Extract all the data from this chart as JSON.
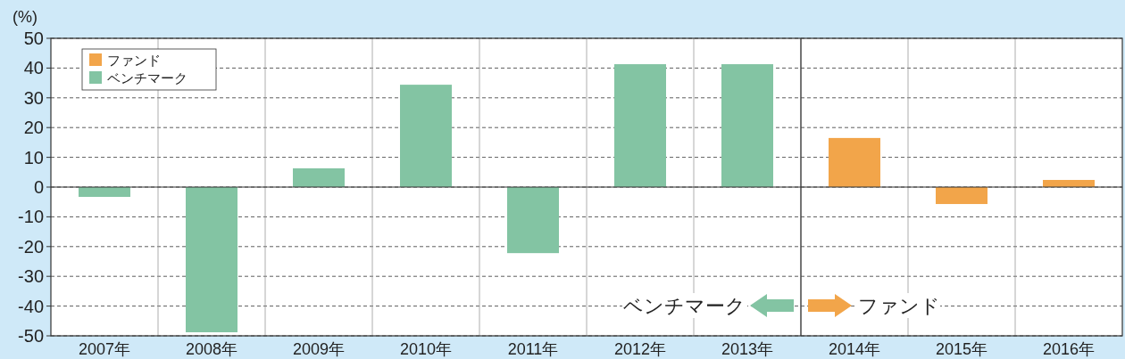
{
  "chart_data": {
    "type": "bar",
    "ylabel": "(%)",
    "categories": [
      "2007年",
      "2008年",
      "2009年",
      "2010年",
      "2011年",
      "2012年",
      "2013年",
      "2014年",
      "2015年",
      "2016年"
    ],
    "series": [
      {
        "name": "ファンド",
        "color": "#f2a54a",
        "values": [
          null,
          null,
          null,
          null,
          null,
          null,
          null,
          16.5,
          -5.7,
          2.4
        ]
      },
      {
        "name": "ベンチマーク",
        "color": "#83c4a3",
        "values": [
          -3.3,
          -48.8,
          6.3,
          34.4,
          -22.2,
          41.3,
          41.3,
          null,
          null,
          null
        ]
      }
    ],
    "ylim": [
      -50,
      50
    ],
    "yticks": [
      -50,
      -40,
      -30,
      -20,
      -10,
      0,
      10,
      20,
      30,
      40,
      50
    ],
    "grid": true,
    "legend": "top left",
    "annotations": [
      "ベンチマーク",
      "ファンド"
    ]
  }
}
